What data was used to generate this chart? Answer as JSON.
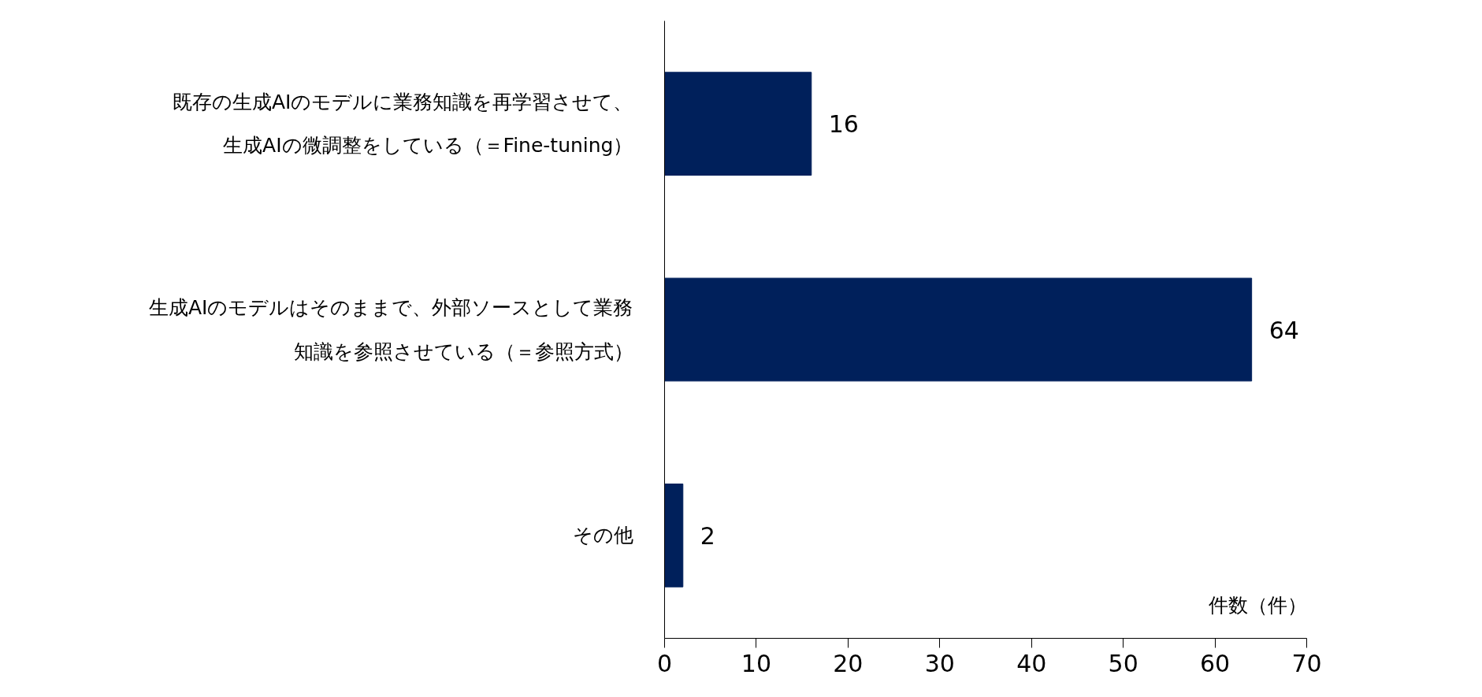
{
  "chart_data": {
    "type": "bar",
    "orientation": "horizontal",
    "xlabel": "件数（件）",
    "categories": [
      "既存の生成AIのモデルに業務知識を再学習させて、生成AIの微調整をしている（＝Fine-tuning）",
      "生成AIのモデルはそのままで、外部ソースとして業務知識を参照させている（＝参照方式）",
      "その他"
    ],
    "values": [
      16,
      64,
      2
    ],
    "color": "#00205b",
    "data_labels": true,
    "xlim": [
      0,
      70
    ],
    "xticks": [
      0,
      10,
      20,
      30,
      40,
      50,
      60,
      70
    ],
    "grid": false
  }
}
